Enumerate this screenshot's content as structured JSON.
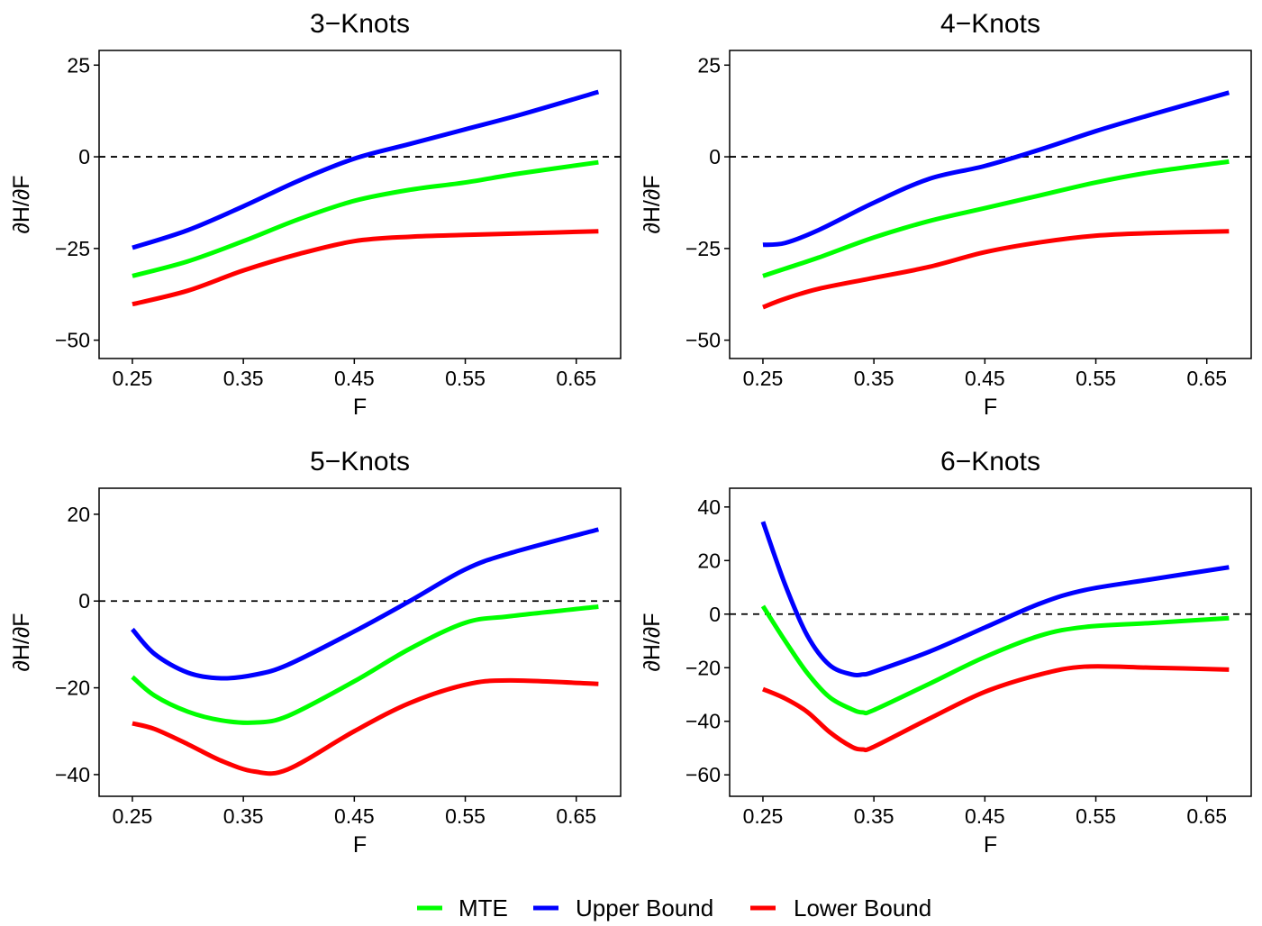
{
  "legend": {
    "items": [
      {
        "label": "MTE",
        "color": "#00ff00"
      },
      {
        "label": "Upper Bound",
        "color": "#0000ff"
      },
      {
        "label": "Lower Bound",
        "color": "#ff0000"
      }
    ]
  },
  "chart_data": [
    {
      "type": "line",
      "title": "3−Knots",
      "xlabel": "F",
      "ylabel": "∂H/∂F",
      "xlim": [
        0.22,
        0.69
      ],
      "ylim": [
        -55,
        29
      ],
      "xticks": [
        0.25,
        0.35,
        0.45,
        0.55,
        0.65
      ],
      "xtick_labels": [
        "0.25",
        "0.35",
        "0.45",
        "0.55",
        "0.65"
      ],
      "yticks": [
        25,
        0,
        -25,
        -50
      ],
      "ytick_labels": [
        "25",
        "0",
        "−25",
        "−50"
      ],
      "reference_line_y": 0,
      "grid": false,
      "x": [
        0.25,
        0.3,
        0.35,
        0.4,
        0.45,
        0.5,
        0.55,
        0.6,
        0.67
      ],
      "series": [
        {
          "name": "MTE",
          "color": "#00ff00",
          "values": [
            -32.5,
            -28.5,
            -23,
            -17,
            -12,
            -9,
            -7,
            -4.5,
            -1.5
          ]
        },
        {
          "name": "Upper Bound",
          "color": "#0000ff",
          "values": [
            -24.8,
            -20,
            -13.5,
            -6.5,
            -0.5,
            3.5,
            7.5,
            11.5,
            17.7
          ]
        },
        {
          "name": "Lower Bound",
          "color": "#ff0000",
          "values": [
            -40.2,
            -36.5,
            -31,
            -26.5,
            -23,
            -21.8,
            -21.3,
            -20.9,
            -20.3
          ]
        }
      ]
    },
    {
      "type": "line",
      "title": "4−Knots",
      "xlabel": "F",
      "ylabel": "∂H/∂F",
      "xlim": [
        0.22,
        0.69
      ],
      "ylim": [
        -55,
        29
      ],
      "xticks": [
        0.25,
        0.35,
        0.45,
        0.55,
        0.65
      ],
      "xtick_labels": [
        "0.25",
        "0.35",
        "0.45",
        "0.55",
        "0.65"
      ],
      "yticks": [
        25,
        0,
        -25,
        -50
      ],
      "ytick_labels": [
        "25",
        "0",
        "−25",
        "−50"
      ],
      "reference_line_y": 0,
      "grid": false,
      "x": [
        0.25,
        0.27,
        0.3,
        0.35,
        0.4,
        0.45,
        0.5,
        0.55,
        0.6,
        0.67
      ],
      "series": [
        {
          "name": "MTE",
          "color": "#00ff00",
          "values": [
            -32.5,
            -30.5,
            -27.5,
            -22,
            -17.5,
            -14,
            -10.5,
            -7,
            -4.2,
            -1.3
          ]
        },
        {
          "name": "Upper Bound",
          "color": "#0000ff",
          "values": [
            -24,
            -23.5,
            -20,
            -12.5,
            -6,
            -2.5,
            2,
            7,
            11.5,
            17.5
          ]
        },
        {
          "name": "Lower Bound",
          "color": "#ff0000",
          "values": [
            -41,
            -38.7,
            -36,
            -33,
            -30,
            -26,
            -23.3,
            -21.5,
            -20.8,
            -20.3
          ]
        }
      ]
    },
    {
      "type": "line",
      "title": "5−Knots",
      "xlabel": "F",
      "ylabel": "∂H/∂F",
      "xlim": [
        0.22,
        0.69
      ],
      "ylim": [
        -45,
        26
      ],
      "xticks": [
        0.25,
        0.35,
        0.45,
        0.55,
        0.65
      ],
      "xtick_labels": [
        "0.25",
        "0.35",
        "0.45",
        "0.55",
        "0.65"
      ],
      "yticks": [
        20,
        0,
        -20,
        -40
      ],
      "ytick_labels": [
        "20",
        "0",
        "−20",
        "−40"
      ],
      "reference_line_y": 0,
      "grid": false,
      "x": [
        0.25,
        0.27,
        0.3,
        0.33,
        0.36,
        0.39,
        0.45,
        0.5,
        0.55,
        0.59,
        0.67
      ],
      "series": [
        {
          "name": "MTE",
          "color": "#00ff00",
          "values": [
            -17.5,
            -21.8,
            -25.5,
            -27.5,
            -28.0,
            -26.5,
            -18.5,
            -11,
            -5,
            -3.5,
            -1.3
          ]
        },
        {
          "name": "Upper Bound",
          "color": "#0000ff",
          "values": [
            -6.5,
            -12.2,
            -16.5,
            -17.8,
            -17.0,
            -14.7,
            -7,
            0,
            7.3,
            11,
            16.5
          ]
        },
        {
          "name": "Lower Bound",
          "color": "#ff0000",
          "values": [
            -28.2,
            -29.5,
            -33,
            -36.8,
            -39.3,
            -38.8,
            -30,
            -23.5,
            -19.3,
            -18.3,
            -19.1
          ]
        }
      ]
    },
    {
      "type": "line",
      "title": "6−Knots",
      "xlabel": "F",
      "ylabel": "∂H/∂F",
      "xlim": [
        0.22,
        0.69
      ],
      "ylim": [
        -68,
        47
      ],
      "xticks": [
        0.25,
        0.35,
        0.45,
        0.55,
        0.65
      ],
      "xtick_labels": [
        "0.25",
        "0.35",
        "0.45",
        "0.55",
        "0.65"
      ],
      "yticks": [
        40,
        20,
        0,
        -20,
        -40,
        -60
      ],
      "ytick_labels": [
        "40",
        "20",
        "0",
        "−20",
        "−40",
        "−60"
      ],
      "reference_line_y": 0,
      "grid": false,
      "x": [
        0.25,
        0.27,
        0.29,
        0.31,
        0.33,
        0.34,
        0.35,
        0.4,
        0.45,
        0.5,
        0.54,
        0.6,
        0.67
      ],
      "series": [
        {
          "name": "MTE",
          "color": "#00ff00",
          "values": [
            3,
            -10,
            -22,
            -31,
            -35.5,
            -36.7,
            -35.8,
            -26,
            -16,
            -8,
            -4.8,
            -3.3,
            -1.5
          ]
        },
        {
          "name": "Upper Bound",
          "color": "#0000ff",
          "values": [
            34.5,
            11,
            -8,
            -19,
            -22.5,
            -22.5,
            -21.5,
            -14,
            -5,
            4,
            9,
            13,
            17.5
          ]
        },
        {
          "name": "Lower Bound",
          "color": "#ff0000",
          "values": [
            -28,
            -31.5,
            -36.5,
            -44,
            -49.5,
            -50.5,
            -49.5,
            -39,
            -29,
            -22.5,
            -19.6,
            -20.0,
            -20.7
          ]
        }
      ]
    }
  ]
}
